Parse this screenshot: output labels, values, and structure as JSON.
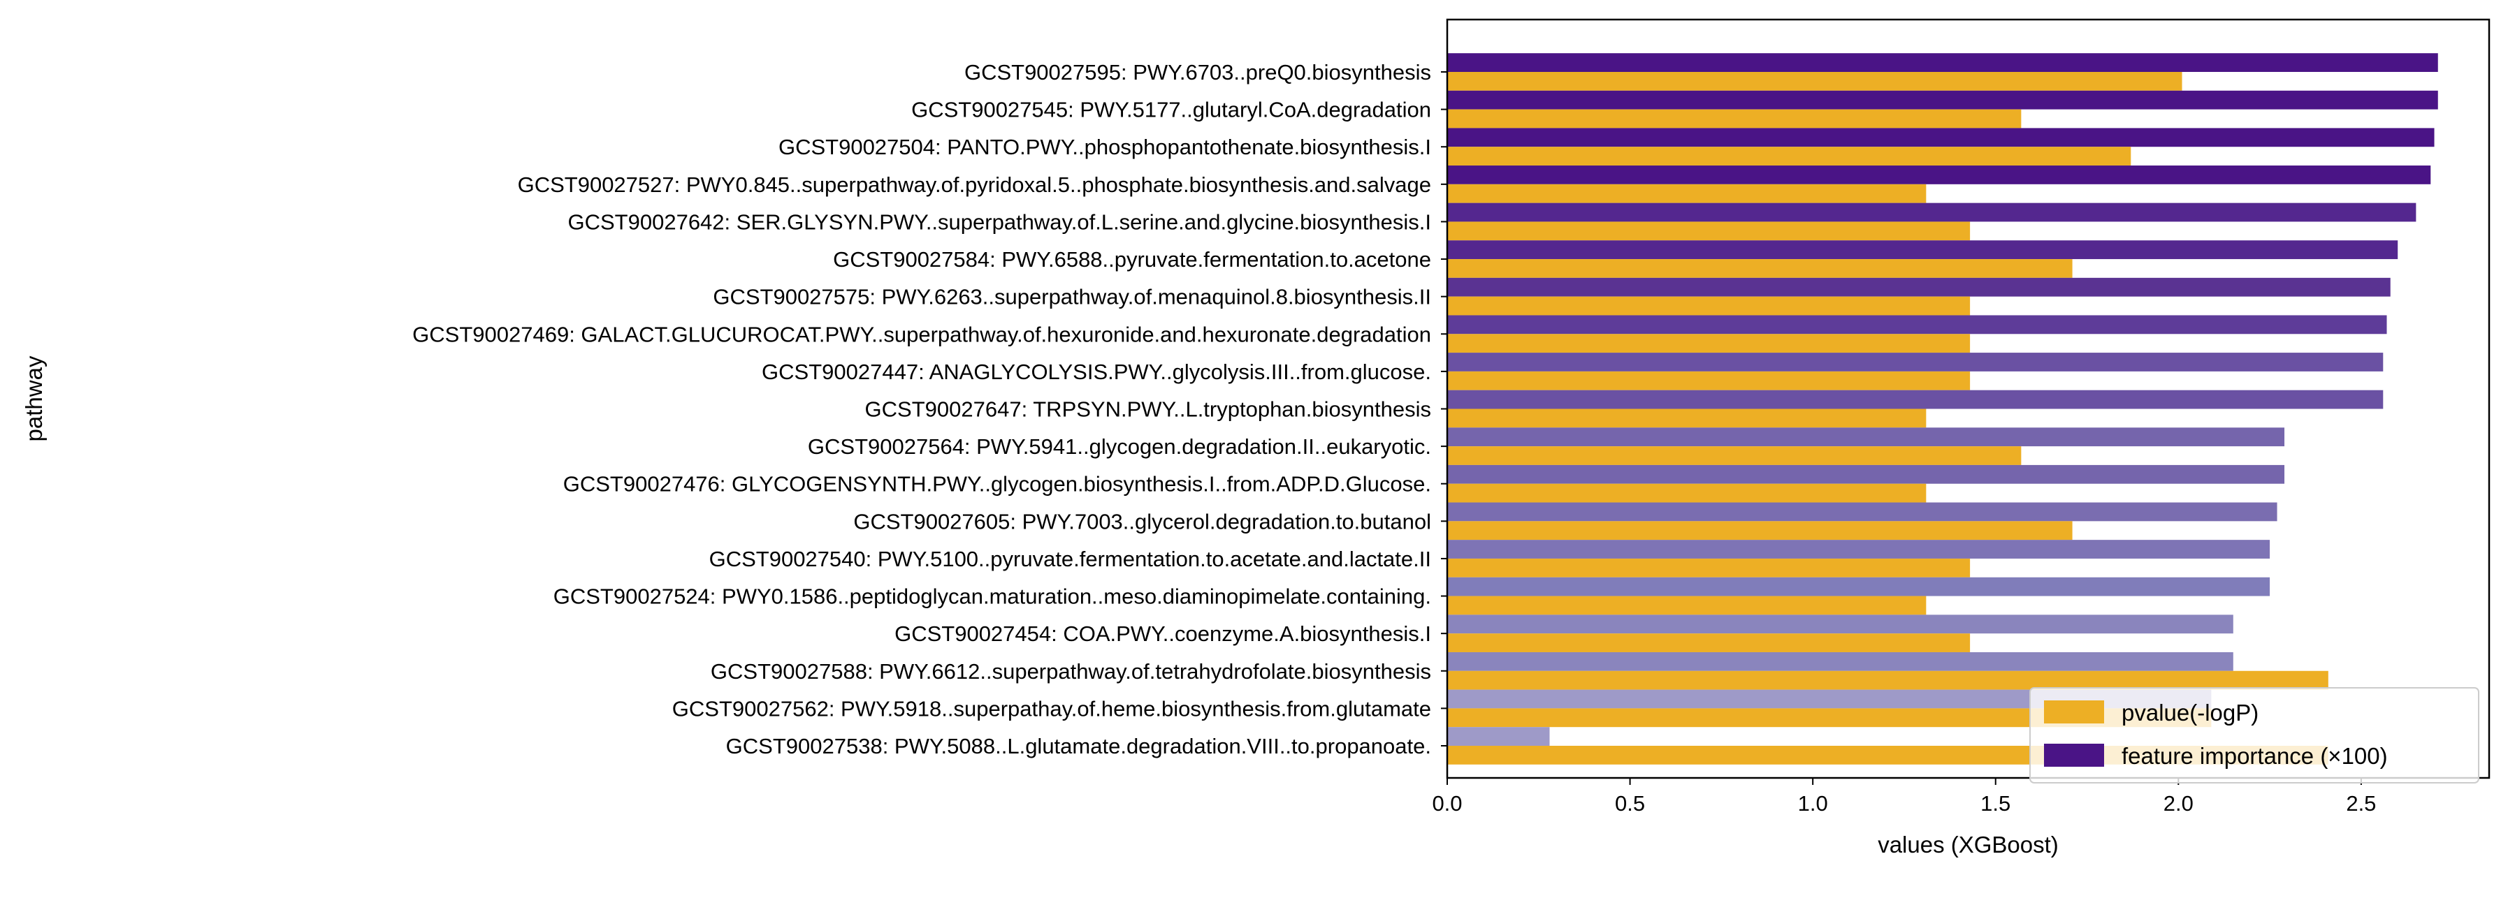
{
  "chart_data": {
    "type": "bar",
    "orientation": "horizontal",
    "xlabel": "values (XGBoost)",
    "ylabel": "pathway",
    "xlim": [
      0,
      2.85
    ],
    "xticks": [
      "0.0",
      "0.5",
      "1.0",
      "1.5",
      "2.0",
      "2.5"
    ],
    "xtick_values": [
      0,
      0.5,
      1.0,
      1.5,
      2.0,
      2.5
    ],
    "grid": false,
    "legend_position": "lower-right",
    "categories": [
      "GCST90027595: PWY.6703..preQ0.biosynthesis",
      "GCST90027545: PWY.5177..glutaryl.CoA.degradation",
      "GCST90027504: PANTO.PWY..phosphopantothenate.biosynthesis.I",
      "GCST90027527: PWY0.845..superpathway.of.pyridoxal.5..phosphate.biosynthesis.and.salvage",
      "GCST90027642: SER.GLYSYN.PWY..superpathway.of.L.serine.and.glycine.biosynthesis.I",
      "GCST90027584: PWY.6588..pyruvate.fermentation.to.acetone",
      "GCST90027575: PWY.6263..superpathway.of.menaquinol.8.biosynthesis.II",
      "GCST90027469: GALACT.GLUCUROCAT.PWY..superpathway.of.hexuronide.and.hexuronate.degradation",
      "GCST90027447: ANAGLYCOLYSIS.PWY..glycolysis.III..from.glucose.",
      "GCST90027647: TRPSYN.PWY..L.tryptophan.biosynthesis",
      "GCST90027564: PWY.5941..glycogen.degradation.II..eukaryotic.",
      "GCST90027476: GLYCOGENSYNTH.PWY..glycogen.biosynthesis.I..from.ADP.D.Glucose.",
      "GCST90027605: PWY.7003..glycerol.degradation.to.butanol",
      "GCST90027540: PWY.5100..pyruvate.fermentation.to.acetate.and.lactate.II",
      "GCST90027524: PWY0.1586..peptidoglycan.maturation..meso.diaminopimelate.containing.",
      "GCST90027454: COA.PWY..coenzyme.A.biosynthesis.I",
      "GCST90027588: PWY.6612..superpathway.of.tetrahydrofolate.biosynthesis",
      "GCST90027562: PWY.5918..superpathay.of.heme.biosynthesis.from.glutamate",
      "GCST90027538: PWY.5088..L.glutamate.degradation.VIII..to.propanoate."
    ],
    "series": [
      {
        "name": "feature importance (×100)",
        "color": "#4a1486",
        "values": [
          2.71,
          2.71,
          2.7,
          2.69,
          2.65,
          2.6,
          2.58,
          2.57,
          2.56,
          2.56,
          2.29,
          2.29,
          2.27,
          2.25,
          2.25,
          2.15,
          2.15,
          2.09,
          0.28
        ],
        "colors": [
          "#4a1486",
          "#4a1486",
          "#4a1486",
          "#4a1486",
          "#54278f",
          "#54278f",
          "#5a3392",
          "#5e3c99",
          "#6a51a3",
          "#6a51a3",
          "#7565ac",
          "#7565ac",
          "#7a6db0",
          "#7e74b5",
          "#807dba",
          "#8a85bd",
          "#8a85bd",
          "#9e9ac8",
          "#9e9ac8"
        ]
      },
      {
        "name": "pvalue(-logP)",
        "color": "#edaf25",
        "values": [
          2.01,
          1.57,
          1.87,
          1.31,
          1.43,
          1.71,
          1.43,
          1.43,
          1.43,
          1.31,
          1.57,
          1.31,
          1.71,
          1.43,
          1.31,
          1.43,
          2.41,
          2.09,
          2.41
        ]
      }
    ]
  }
}
